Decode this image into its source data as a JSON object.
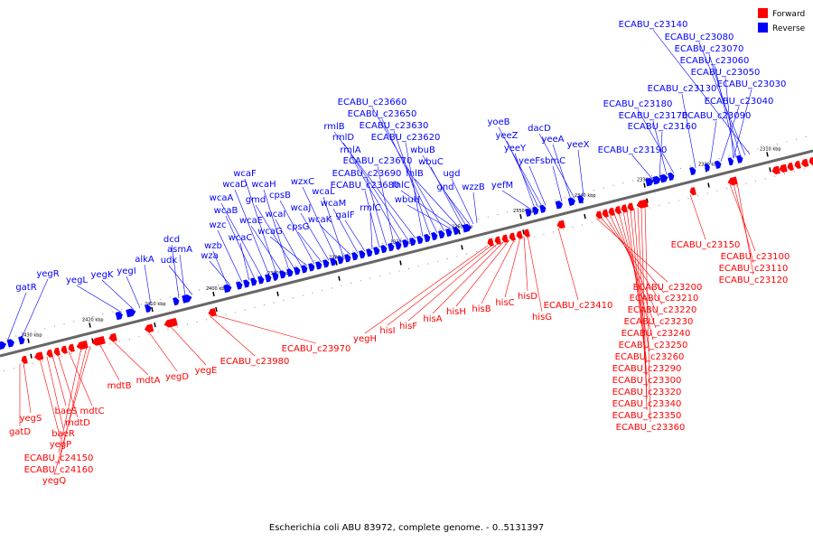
{
  "caption": "Escherichia coli ABU 83972, complete genome. - 0..5131397",
  "legend": {
    "forward": {
      "label": "Forward",
      "color": "#ff0000"
    },
    "reverse": {
      "label": "Reverse",
      "color": "#0000ff"
    }
  },
  "scale_ticks": [
    "2430 kbp",
    "2420 kbp",
    "2410 kbp",
    "2400 kbp",
    "2390 kbp",
    "2380 kbp",
    "2370 kbp",
    "2360 kbp",
    "2350 kbp",
    "2340 kbp",
    "2330 kbp",
    "2320 kbp",
    "2310 kbp"
  ],
  "reverse_labels": [
    "gatR",
    "yegR",
    "yegL",
    "yegK",
    "yegI",
    "alkA",
    "dcd",
    "asmA",
    "udk",
    "wzb",
    "wza",
    "wzc",
    "wcaC",
    "wcaB",
    "wcaA",
    "wcaD",
    "wcaF",
    "wcaE",
    "wcaH",
    "gmd",
    "wcaI",
    "wcaG",
    "cpsB",
    "cpsG",
    "wcaJ",
    "wzxC",
    "wcaL",
    "wcaK",
    "wcaM",
    "galF",
    "rmlC",
    "ECABU_c23680",
    "ECABU_c23690",
    "ECABU_c23670",
    "rmlA",
    "rmlD",
    "rmlB",
    "ECABU_c23620",
    "ECABU_c23630",
    "ECABU_c23650",
    "ECABU_c23660",
    "wbuH",
    "fnlC",
    "fnlB",
    "wbuC",
    "wbuB",
    "gnd",
    "ugd",
    "wzzB",
    "yefM",
    "yeeY",
    "yeeZ",
    "yoeB",
    "yeeF",
    "sbmC",
    "yeeA",
    "dacD",
    "yeeX",
    "ECABU_c23190",
    "ECABU_c23160",
    "ECABU_c23170",
    "ECABU_c23180",
    "ECABU_c23130",
    "ECABU_c23090",
    "ECABU_c23040",
    "ECABU_c23030",
    "ECABU_c23050",
    "ECABU_c23060",
    "ECABU_c23070",
    "ECABU_c23080",
    "ECABU_c23140"
  ],
  "forward_labels": [
    "gatD",
    "yegS",
    "yegP",
    "baeR",
    "baeS",
    "mdtD",
    "mdtC",
    "ECABU_c24150",
    "ECABU_c24160",
    "yegQ",
    "mdtB",
    "mdtA",
    "yegD",
    "yegE",
    "ECABU_c23980",
    "ECABU_c23970",
    "yegH",
    "hisI",
    "hisF",
    "hisA",
    "hisH",
    "hisB",
    "hisC",
    "hisD",
    "hisG",
    "ECABU_c23410",
    "ECABU_c23200",
    "ECABU_c23210",
    "ECABU_c23220",
    "ECABU_c23230",
    "ECABU_c23240",
    "ECABU_c23250",
    "ECABU_c23260",
    "ECABU_c23290",
    "ECABU_c23300",
    "ECABU_c23320",
    "ECABU_c23340",
    "ECABU_c23350",
    "ECABU_c23360",
    "ECABU_c23150",
    "ECABU_c23100",
    "ECABU_c23110",
    "ECABU_c23120"
  ]
}
